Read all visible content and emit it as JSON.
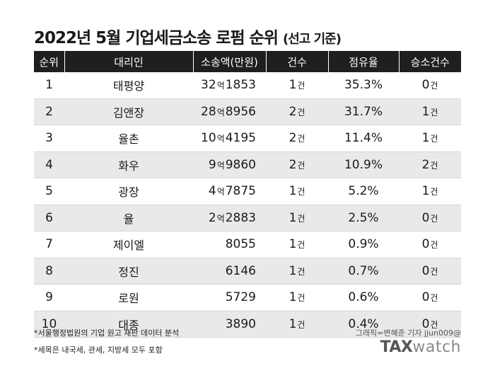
{
  "title": {
    "main": "2022년 5월 기업세금소송 로펌 순위",
    "sub": "(선고 기준)"
  },
  "table": {
    "headers": [
      "순위",
      "대리인",
      "소송액(만원)",
      "건수",
      "점유율",
      "승소건수"
    ],
    "eok_unit": "억",
    "case_unit": "건",
    "rows": [
      {
        "rank": "1",
        "firm": "태평양",
        "eok": "32",
        "man": "1853",
        "cases": "1",
        "share": "35.3%",
        "wins": "0"
      },
      {
        "rank": "2",
        "firm": "김앤장",
        "eok": "28",
        "man": "8956",
        "cases": "2",
        "share": "31.7%",
        "wins": "1"
      },
      {
        "rank": "3",
        "firm": "율촌",
        "eok": "10",
        "man": "4195",
        "cases": "2",
        "share": "11.4%",
        "wins": "1"
      },
      {
        "rank": "4",
        "firm": "화우",
        "eok": "9",
        "man": "9860",
        "cases": "2",
        "share": "10.9%",
        "wins": "2"
      },
      {
        "rank": "5",
        "firm": "광장",
        "eok": "4",
        "man": "7875",
        "cases": "1",
        "share": "5.2%",
        "wins": "1"
      },
      {
        "rank": "6",
        "firm": "율",
        "eok": "2",
        "man": "2883",
        "cases": "1",
        "share": "2.5%",
        "wins": "0"
      },
      {
        "rank": "7",
        "firm": "제이엘",
        "eok": "",
        "man": "8055",
        "cases": "1",
        "share": "0.9%",
        "wins": "0"
      },
      {
        "rank": "8",
        "firm": "정진",
        "eok": "",
        "man": "6146",
        "cases": "1",
        "share": "0.7%",
        "wins": "0"
      },
      {
        "rank": "9",
        "firm": "로원",
        "eok": "",
        "man": "5729",
        "cases": "1",
        "share": "0.6%",
        "wins": "0"
      },
      {
        "rank": "10",
        "firm": "대종",
        "eok": "",
        "man": "3890",
        "cases": "1",
        "share": "0.4%",
        "wins": "0"
      }
    ]
  },
  "footnotes": [
    "*서울행정법원의 기업 원고 재판 데이터 분석",
    "*세목은 내국세, 관세, 지방세 모두 포함"
  ],
  "credit": "그래픽=변혜준 기자 jjun009@",
  "logo": {
    "bold": "TAX",
    "light": "watch"
  }
}
